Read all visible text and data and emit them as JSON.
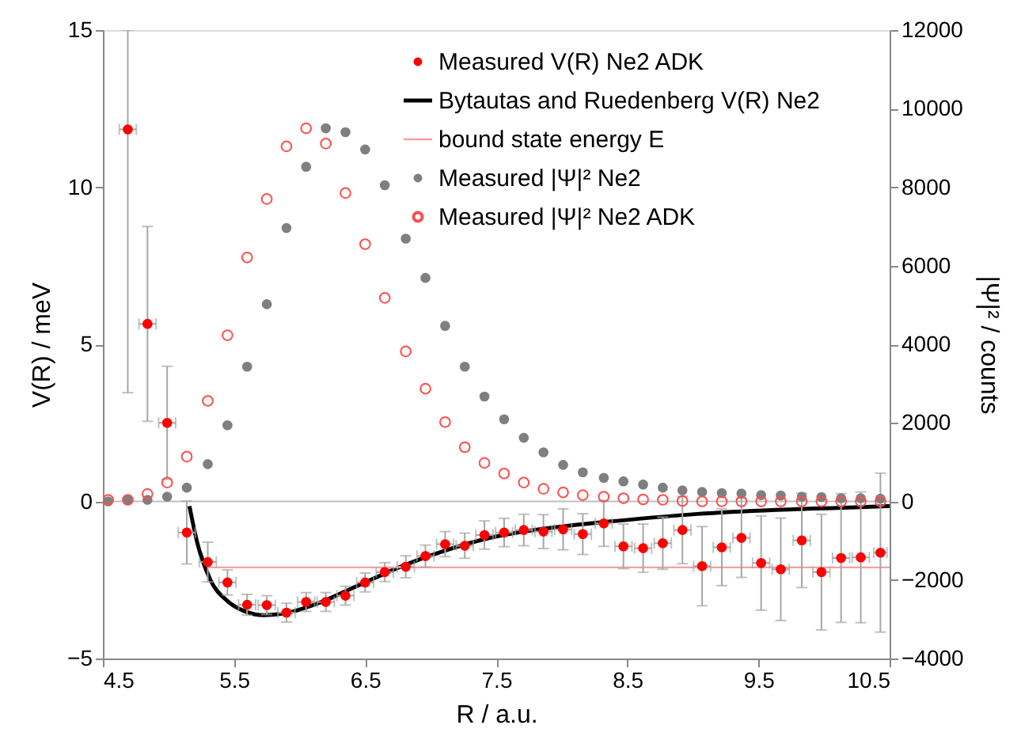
{
  "chart_data": {
    "type": "scatter",
    "xlabel": "R / a.u.",
    "ylabel": "V(R) / meV",
    "y2label": "|Ψ|² / counts",
    "xlim": [
      4.5,
      10.5
    ],
    "xticks": [
      4.5,
      5.5,
      6.5,
      7.5,
      8.5,
      9.5,
      10.5
    ],
    "ylim": [
      -5,
      15
    ],
    "yticks": [
      -5,
      0,
      5,
      10,
      15
    ],
    "y2lim": [
      -4000,
      12000
    ],
    "y2ticks": [
      -4000,
      -2000,
      0,
      2000,
      4000,
      6000,
      8000,
      10000,
      12000
    ],
    "grid": false,
    "legend": "top right",
    "ref_lines": [
      {
        "axis": "y",
        "value": 0,
        "color": "#bfbfbf"
      }
    ],
    "x": [
      4.54,
      4.69,
      4.84,
      4.99,
      5.14,
      5.3,
      5.45,
      5.6,
      5.75,
      5.9,
      6.05,
      6.2,
      6.35,
      6.5,
      6.65,
      6.81,
      6.96,
      7.11,
      7.26,
      7.41,
      7.56,
      7.71,
      7.86,
      8.01,
      8.16,
      8.32,
      8.47,
      8.62,
      8.77,
      8.92,
      9.07,
      9.22,
      9.37,
      9.52,
      9.67,
      9.83,
      9.98,
      10.13,
      10.28,
      10.43
    ],
    "series": [
      {
        "name": "Measured V(R) Ne2 ADK",
        "marker": "circle",
        "color": "#ff0000",
        "x": [
          4.69,
          4.84,
          4.99,
          5.14,
          5.3,
          5.45,
          5.6,
          5.75,
          5.9,
          6.05,
          6.2,
          6.35,
          6.5,
          6.65,
          6.81,
          6.96,
          7.11,
          7.26,
          7.41,
          7.56,
          7.71,
          7.86,
          8.01,
          8.16,
          8.32,
          8.47,
          8.62,
          8.77,
          8.92,
          9.07,
          9.22,
          9.37,
          9.52,
          9.67,
          9.83,
          9.98,
          10.13,
          10.28,
          10.43
        ],
        "values": [
          11.84,
          5.65,
          2.5,
          -0.99,
          -1.93,
          -2.58,
          -3.29,
          -3.3,
          -3.54,
          -3.2,
          -3.2,
          -3.0,
          -2.58,
          -2.25,
          -2.08,
          -1.74,
          -1.36,
          -1.41,
          -1.07,
          -0.99,
          -0.91,
          -0.96,
          -0.89,
          -1.04,
          -0.7,
          -1.43,
          -1.49,
          -1.33,
          -0.91,
          -2.06,
          -1.46,
          -1.16,
          -1.96,
          -2.16,
          -1.24,
          -2.25,
          -1.8,
          -1.78,
          -1.63
        ],
        "errors": [
          [
            3.46,
            15
          ],
          3.1,
          1.8,
          1.0,
          0.63,
          0.4,
          0.33,
          0.3,
          0.3,
          0.3,
          0.3,
          0.3,
          0.3,
          0.3,
          0.35,
          0.35,
          0.4,
          0.4,
          0.45,
          0.45,
          0.5,
          0.54,
          0.65,
          0.65,
          0.73,
          0.71,
          0.77,
          0.83,
          1.07,
          1.26,
          1.22,
          1.26,
          1.5,
          1.63,
          1.5,
          1.84,
          2.05,
          2.08,
          2.53
        ],
        "xerrors": [
          0.065,
          0.065,
          0.065,
          0.065,
          0.065,
          0.065,
          0.065,
          0.065,
          0.065,
          0.065,
          0.065,
          0.065,
          0.065,
          0.065,
          0.065,
          0.065,
          0.065,
          0.065,
          0.065,
          0.065,
          0.065,
          0.065,
          0.065,
          0.065,
          0.065,
          0.065,
          0.065,
          0.065,
          0.065,
          0.065,
          0.065,
          0.065,
          0.065,
          0.065,
          0.065,
          0.065,
          0.065,
          0.065,
          0.05
        ]
      },
      {
        "name": "Bytautas and Ruedenberg  V(R) Ne2",
        "type": "line",
        "marker": "none",
        "line_style": "solid",
        "color": "#000000",
        "x": [
          5.16,
          5.22,
          5.32,
          5.45,
          5.59,
          5.73,
          5.89,
          6.13,
          6.45,
          6.77,
          7.1,
          7.42,
          7.74,
          8.02,
          8.42,
          9.03,
          9.63,
          10.24,
          10.5
        ],
        "values": [
          -0.15,
          -1.32,
          -2.5,
          -3.17,
          -3.51,
          -3.62,
          -3.56,
          -3.26,
          -2.67,
          -2.08,
          -1.58,
          -1.19,
          -0.94,
          -0.79,
          -0.62,
          -0.4,
          -0.27,
          -0.19,
          -0.15
        ]
      },
      {
        "name": "bound state energy E",
        "type": "line",
        "marker": "none",
        "line_style": "solid",
        "color": "#f4a0a0",
        "x": [
          5.3,
          10.5
        ],
        "values": [
          -2.1,
          -2.1
        ]
      },
      {
        "name": "Measured |Ψ|² Ne2",
        "marker": "circle",
        "axis": "y2",
        "color": "#7f7f7f",
        "values": [
          0,
          40,
          40,
          120,
          350,
          950,
          1940,
          3430,
          5020,
          6960,
          8520,
          9500,
          9400,
          8960,
          8050,
          6690,
          5690,
          4470,
          3430,
          2670,
          2090,
          1620,
          1250,
          930,
          740,
          600,
          510,
          430,
          350,
          280,
          240,
          210,
          200,
          160,
          150,
          120,
          110,
          80,
          80,
          70
        ]
      },
      {
        "name": "Measured |Ψ|² Ne2 ADK",
        "marker": "circle",
        "axis": "y2",
        "color": "#ff4d4d",
        "values": [
          40,
          40,
          190,
          480,
          1140,
          2560,
          4230,
          6210,
          7700,
          9040,
          9500,
          9110,
          7850,
          6550,
          5180,
          3820,
          2870,
          2020,
          1380,
          980,
          710,
          480,
          320,
          230,
          160,
          120,
          80,
          50,
          40,
          10,
          0,
          0,
          0,
          0,
          0,
          0,
          0,
          0,
          0,
          0
        ]
      }
    ]
  }
}
